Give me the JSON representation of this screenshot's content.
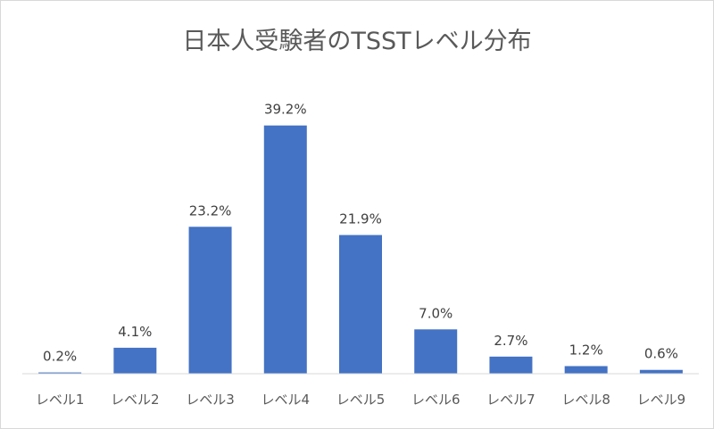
{
  "chart_data": {
    "type": "bar",
    "title": "日本人受験者のTSSTレベル分布",
    "xlabel": "",
    "ylabel": "",
    "categories": [
      "レベル1",
      "レベル2",
      "レベル3",
      "レベル4",
      "レベル5",
      "レベル6",
      "レベル7",
      "レベル8",
      "レベル9"
    ],
    "values": [
      0.2,
      4.1,
      23.2,
      39.2,
      21.9,
      7.0,
      2.7,
      1.2,
      0.6
    ],
    "value_labels": [
      "0.2%",
      "4.1%",
      "23.2%",
      "39.2%",
      "21.9%",
      "7.0%",
      "2.7%",
      "1.2%",
      "0.6%"
    ],
    "ylim": [
      0,
      40
    ],
    "grid": false,
    "legend": "none",
    "bar_color": "#4472c4",
    "axis_color": "#d9d9d9"
  }
}
